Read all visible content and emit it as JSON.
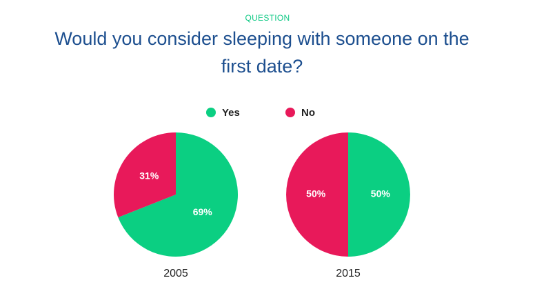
{
  "eyebrow": "QUESTION",
  "title": "Would you consider sleeping with someone on the first date?",
  "chart_data": [
    {
      "type": "pie",
      "title": "2005",
      "categories": [
        "Yes",
        "No"
      ],
      "values": [
        69,
        31
      ],
      "value_labels": [
        "69%",
        "31%"
      ],
      "colors": [
        "#0bcf82",
        "#e8195a"
      ]
    },
    {
      "type": "pie",
      "title": "2015",
      "categories": [
        "Yes",
        "No"
      ],
      "values": [
        50,
        50
      ],
      "value_labels": [
        "50%",
        "50%"
      ],
      "colors": [
        "#0bcf82",
        "#e8195a"
      ]
    }
  ]
}
